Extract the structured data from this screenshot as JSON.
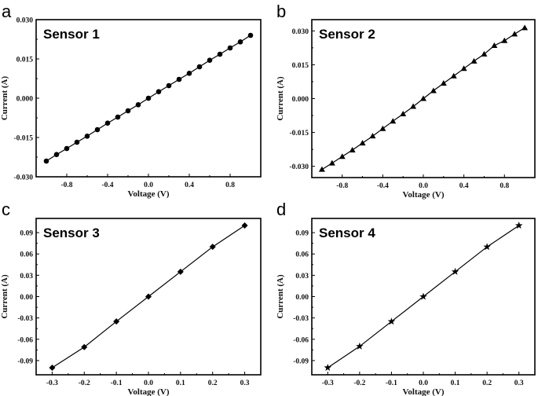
{
  "chart_data": [
    {
      "panel_label": "a",
      "type": "line",
      "title": "Sensor 1",
      "xlabel": "Voltage (V)",
      "ylabel": "Current (A)",
      "xlim": [
        -1.1,
        1.1
      ],
      "ylim": [
        -0.03,
        0.03
      ],
      "xticks": [
        "-0.8",
        "-0.4",
        "0.0",
        "0.4",
        "0.8"
      ],
      "yticks": [
        "-0.030",
        "-0.015",
        "0.000",
        "0.015",
        "0.030"
      ],
      "marker": "circle",
      "grid": false,
      "x": [
        -1.0,
        -0.9,
        -0.8,
        -0.7,
        -0.6,
        -0.5,
        -0.4,
        -0.3,
        -0.2,
        -0.1,
        0.0,
        0.1,
        0.2,
        0.3,
        0.4,
        0.5,
        0.6,
        0.7,
        0.8,
        0.9,
        1.0
      ],
      "y": [
        -0.024,
        -0.0215,
        -0.0192,
        -0.0168,
        -0.0145,
        -0.012,
        -0.0095,
        -0.0072,
        -0.0048,
        -0.0025,
        0.0,
        0.0025,
        0.0048,
        0.0072,
        0.0095,
        0.012,
        0.0145,
        0.0168,
        0.0192,
        0.0215,
        0.024
      ]
    },
    {
      "panel_label": "b",
      "type": "line",
      "title": "Sensor 2",
      "xlabel": "Voltage (V)",
      "ylabel": "Current (A)",
      "xlim": [
        -1.1,
        1.1
      ],
      "ylim": [
        -0.035,
        0.035
      ],
      "xticks": [
        "-0.8",
        "-0.4",
        "0.0",
        "0.4",
        "0.8"
      ],
      "yticks": [
        "-0.030",
        "-0.015",
        "0.000",
        "0.015",
        "0.030"
      ],
      "marker": "triangle",
      "grid": false,
      "x": [
        -1.0,
        -0.9,
        -0.8,
        -0.7,
        -0.6,
        -0.5,
        -0.4,
        -0.3,
        -0.2,
        -0.1,
        0.0,
        0.1,
        0.2,
        0.3,
        0.4,
        0.5,
        0.6,
        0.7,
        0.8,
        0.9,
        1.0
      ],
      "y": [
        -0.0314,
        -0.0286,
        -0.0257,
        -0.0228,
        -0.0197,
        -0.0166,
        -0.0133,
        -0.01,
        -0.0068,
        -0.0035,
        0.0,
        0.0035,
        0.0068,
        0.01,
        0.0133,
        0.0166,
        0.0197,
        0.0235,
        0.0257,
        0.0286,
        0.0314
      ]
    },
    {
      "panel_label": "c",
      "type": "line",
      "title": "Sensor 3",
      "xlabel": "Voltage (V)",
      "ylabel": "Current (A)",
      "xlim": [
        -0.35,
        0.35
      ],
      "ylim": [
        -0.11,
        0.11
      ],
      "xticks": [
        "-0.3",
        "-0.2",
        "-0.1",
        "0.0",
        "0.1",
        "0.2",
        "0.3"
      ],
      "yticks": [
        "-0.09",
        "-0.06",
        "-0.03",
        "0.00",
        "0.03",
        "0.06",
        "0.09"
      ],
      "marker": "diamond",
      "grid": false,
      "x": [
        -0.3,
        -0.2,
        -0.1,
        0.0,
        0.1,
        0.2,
        0.3
      ],
      "y": [
        -0.1,
        -0.071,
        -0.035,
        0.0,
        0.035,
        0.07,
        0.1
      ]
    },
    {
      "panel_label": "d",
      "type": "line",
      "title": "Sensor 4",
      "xlabel": "Voltage (V)",
      "ylabel": "Current (A)",
      "xlim": [
        -0.35,
        0.35
      ],
      "ylim": [
        -0.11,
        0.11
      ],
      "xticks": [
        "-0.3",
        "-0.2",
        "-0.1",
        "0.0",
        "0.1",
        "0.2",
        "0.3"
      ],
      "yticks": [
        "-0.09",
        "-0.06",
        "-0.03",
        "0.00",
        "0.03",
        "0.06",
        "0.09"
      ],
      "marker": "star",
      "grid": false,
      "x": [
        -0.3,
        -0.2,
        -0.1,
        0.0,
        0.1,
        0.2,
        0.3
      ],
      "y": [
        -0.1,
        -0.07,
        -0.035,
        0.0,
        0.035,
        0.07,
        0.1
      ]
    }
  ]
}
